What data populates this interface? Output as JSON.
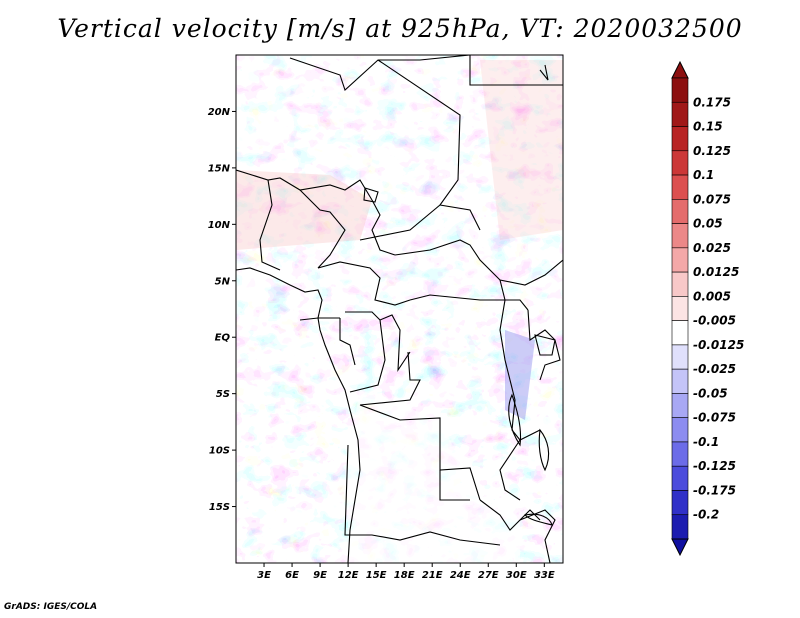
{
  "title": "Vertical velocity [m/s] at 925hPa, VT: 2020032500",
  "credit": "GrADS: IGES/COLA",
  "map": {
    "region": "Central Africa",
    "lon_range": [
      0,
      35
    ],
    "lat_range": [
      -20,
      25
    ],
    "lat_labels": [
      {
        "label": "20N",
        "lat": 20
      },
      {
        "label": "15N",
        "lat": 15
      },
      {
        "label": "10N",
        "lat": 10
      },
      {
        "label": "5N",
        "lat": 5
      },
      {
        "label": "EQ",
        "lat": 0
      },
      {
        "label": "5S",
        "lat": -5
      },
      {
        "label": "10S",
        "lat": -10
      },
      {
        "label": "15S",
        "lat": -15
      }
    ],
    "lon_labels": [
      {
        "label": "3E",
        "lon": 3
      },
      {
        "label": "6E",
        "lon": 6
      },
      {
        "label": "9E",
        "lon": 9
      },
      {
        "label": "12E",
        "lon": 12
      },
      {
        "label": "15E",
        "lon": 15
      },
      {
        "label": "18E",
        "lon": 18
      },
      {
        "label": "21E",
        "lon": 21
      },
      {
        "label": "24E",
        "lon": 24
      },
      {
        "label": "27E",
        "lon": 27
      },
      {
        "label": "30E",
        "lon": 30
      },
      {
        "label": "33E",
        "lon": 33
      }
    ]
  },
  "colorbar": {
    "levels": [
      {
        "label": "0.175",
        "color": "#a01818"
      },
      {
        "label": "0.15",
        "color": "#b82424"
      },
      {
        "label": "0.125",
        "color": "#cc3838"
      },
      {
        "label": "0.1",
        "color": "#dc5050"
      },
      {
        "label": "0.075",
        "color": "#e46c6c"
      },
      {
        "label": "0.05",
        "color": "#ec8888"
      },
      {
        "label": "0.025",
        "color": "#f4a8a8"
      },
      {
        "label": "0.0125",
        "color": "#f8c8c8"
      },
      {
        "label": "0.005",
        "color": "#fce4e4"
      },
      {
        "label": "-0.005",
        "color": "#ffffff"
      },
      {
        "label": "-0.0125",
        "color": "#e0e0fc"
      },
      {
        "label": "-0.025",
        "color": "#c4c4f8"
      },
      {
        "label": "-0.05",
        "color": "#a8a8f4"
      },
      {
        "label": "-0.075",
        "color": "#8c8cf0"
      },
      {
        "label": "-0.1",
        "color": "#6c6ce8"
      },
      {
        "label": "-0.125",
        "color": "#4c4cdc"
      },
      {
        "label": "-0.175",
        "color": "#3030c8"
      },
      {
        "label": "-0.2",
        "color": "#1c1cb0"
      }
    ],
    "top_color": "#8c1010",
    "bottom_color": "#1010a0"
  }
}
